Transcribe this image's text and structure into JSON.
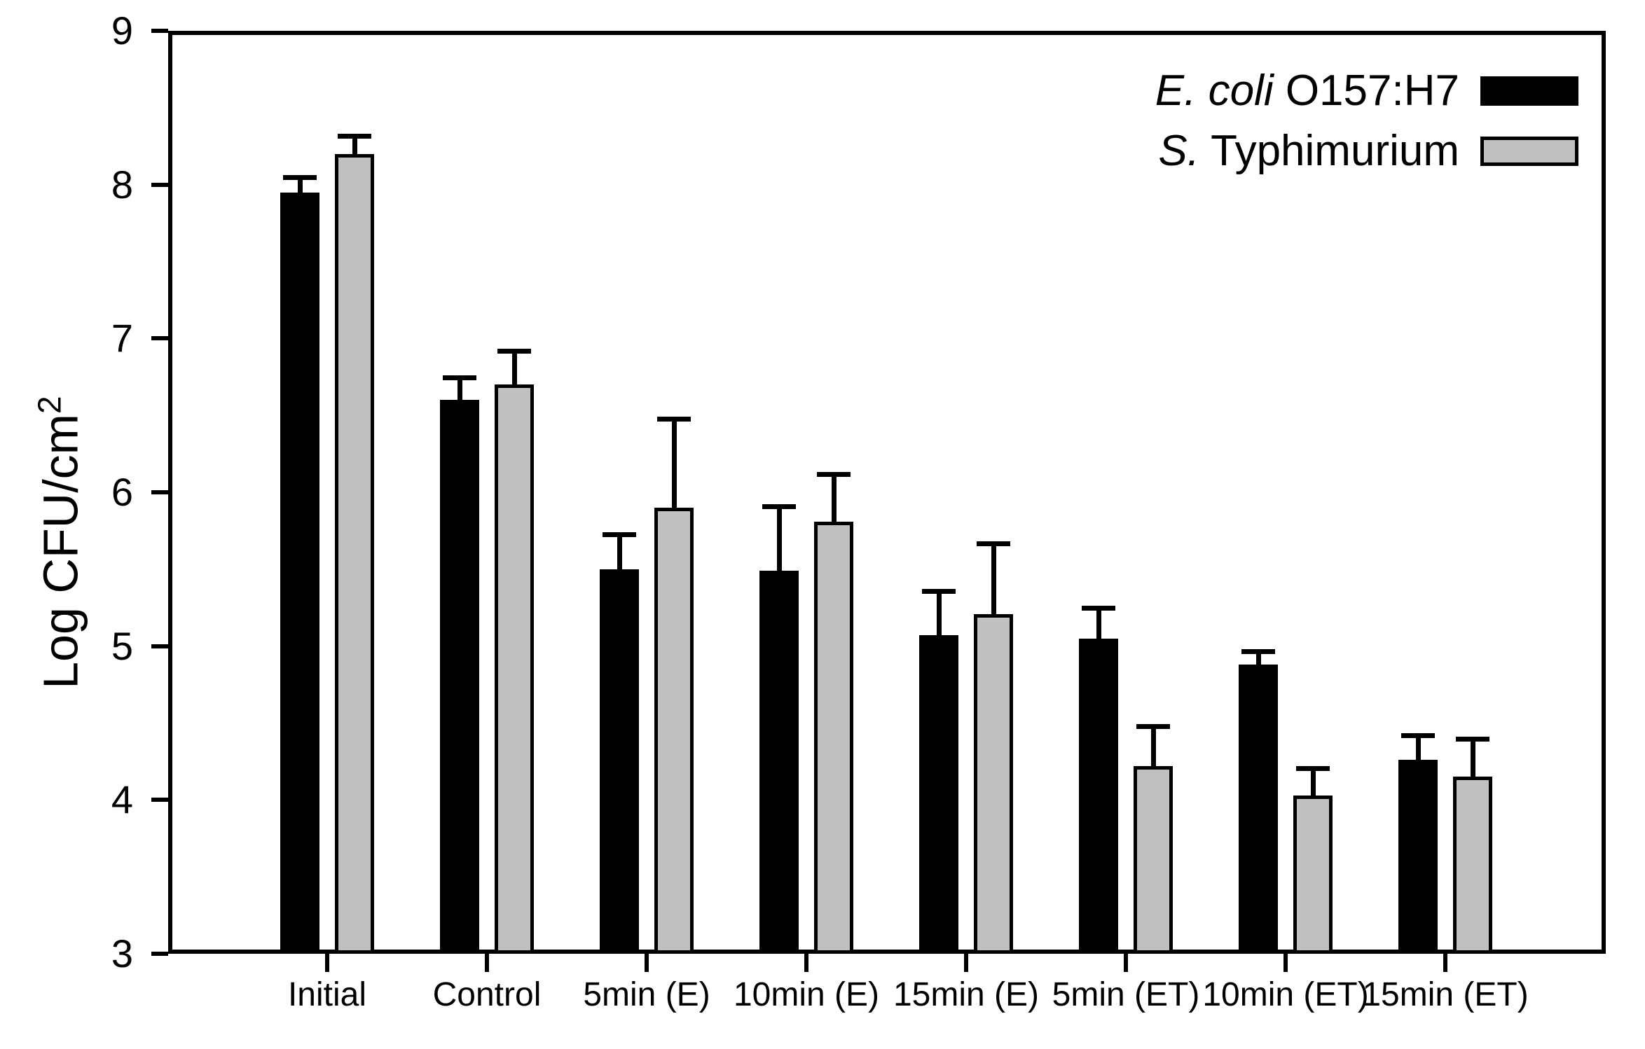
{
  "chart_data": {
    "type": "bar",
    "title": "",
    "xlabel": "",
    "ylabel": "Log CFU/cm²",
    "ylabel_base": "Log CFU/cm",
    "ylabel_sup": "2",
    "ylim": [
      3,
      9
    ],
    "yticks": [
      3,
      4,
      5,
      6,
      7,
      8,
      9
    ],
    "grid": false,
    "legend_position": "top-right",
    "error_bars": "upper",
    "categories": [
      "Initial",
      "Control",
      "5min (E)",
      "10min (E)",
      "15min (E)",
      "5min (ET)",
      "10min (ET)",
      "15min (ET)"
    ],
    "series": [
      {
        "name": "E. coli O157:H7",
        "color": "#000000",
        "values": [
          7.95,
          6.6,
          5.5,
          5.49,
          5.07,
          5.05,
          4.88,
          4.26
        ],
        "errors": [
          0.08,
          0.13,
          0.21,
          0.4,
          0.27,
          0.18,
          0.07,
          0.14
        ]
      },
      {
        "name": "S. Typhimurium",
        "color": "#c0c0c0",
        "values": [
          8.2,
          6.7,
          5.9,
          5.81,
          5.21,
          4.22,
          4.03,
          4.15
        ],
        "errors": [
          0.1,
          0.2,
          0.56,
          0.29,
          0.44,
          0.24,
          0.16,
          0.23
        ]
      }
    ]
  },
  "legend": {
    "items": [
      {
        "italic": "E. coli",
        "regular": " O157:H7",
        "swatch": "#000000"
      },
      {
        "italic": "S.",
        "regular": " Typhimurium",
        "swatch": "#c0c0c0"
      }
    ]
  }
}
